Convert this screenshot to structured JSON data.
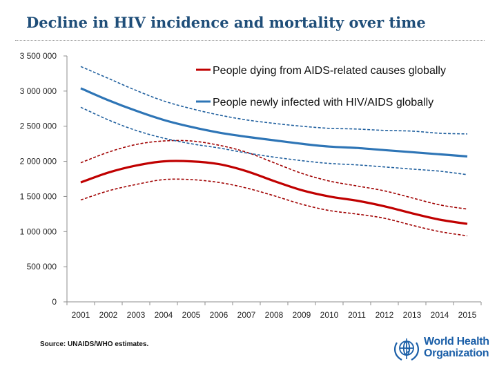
{
  "title": "Decline in HIV incidence and mortality over time",
  "source": "Source: UNAIDS/WHO estimates.",
  "logo": {
    "line1": "World Health",
    "line2": "Organization",
    "icon": "who-emblem-icon",
    "color": "#1b5fa8"
  },
  "chart_data": {
    "type": "line",
    "title": "",
    "xlabel": "",
    "ylabel": "",
    "categories": [
      "2001",
      "2002",
      "2003",
      "2004",
      "2005",
      "2006",
      "2007",
      "2008",
      "2009",
      "2010",
      "2011",
      "2012",
      "2013",
      "2014",
      "2015"
    ],
    "ylim": [
      0,
      3500000
    ],
    "yticks": [
      0,
      500000,
      1000000,
      1500000,
      2000000,
      2500000,
      3000000,
      3500000
    ],
    "ytick_labels": [
      "0",
      "500 000",
      "1 000 000",
      "1 500 000",
      "2 000 000",
      "2 500 000",
      "3 000 000",
      "3 500 000"
    ],
    "grid": false,
    "legend_position": "top-right",
    "series": [
      {
        "name": "People dying from AIDS-related causes globally",
        "color": "#c00000",
        "values": [
          1700000,
          1840000,
          1940000,
          2000000,
          2000000,
          1960000,
          1860000,
          1720000,
          1590000,
          1500000,
          1440000,
          1360000,
          1260000,
          1170000,
          1110000
        ],
        "lower": [
          1450000,
          1580000,
          1670000,
          1740000,
          1740000,
          1700000,
          1620000,
          1510000,
          1390000,
          1300000,
          1250000,
          1190000,
          1090000,
          1000000,
          940000
        ],
        "upper": [
          1980000,
          2130000,
          2240000,
          2290000,
          2290000,
          2230000,
          2130000,
          1980000,
          1830000,
          1720000,
          1650000,
          1580000,
          1480000,
          1380000,
          1320000
        ]
      },
      {
        "name": "People newly infected with HIV/AIDS globally",
        "color": "#2e75b6",
        "values": [
          3040000,
          2870000,
          2720000,
          2590000,
          2490000,
          2410000,
          2350000,
          2300000,
          2250000,
          2210000,
          2190000,
          2160000,
          2130000,
          2100000,
          2070000
        ],
        "lower": [
          2770000,
          2590000,
          2440000,
          2330000,
          2250000,
          2190000,
          2120000,
          2060000,
          2010000,
          1970000,
          1950000,
          1920000,
          1890000,
          1860000,
          1810000
        ],
        "upper": [
          3350000,
          3180000,
          3010000,
          2860000,
          2750000,
          2660000,
          2590000,
          2540000,
          2500000,
          2470000,
          2460000,
          2440000,
          2430000,
          2400000,
          2390000
        ]
      }
    ]
  }
}
